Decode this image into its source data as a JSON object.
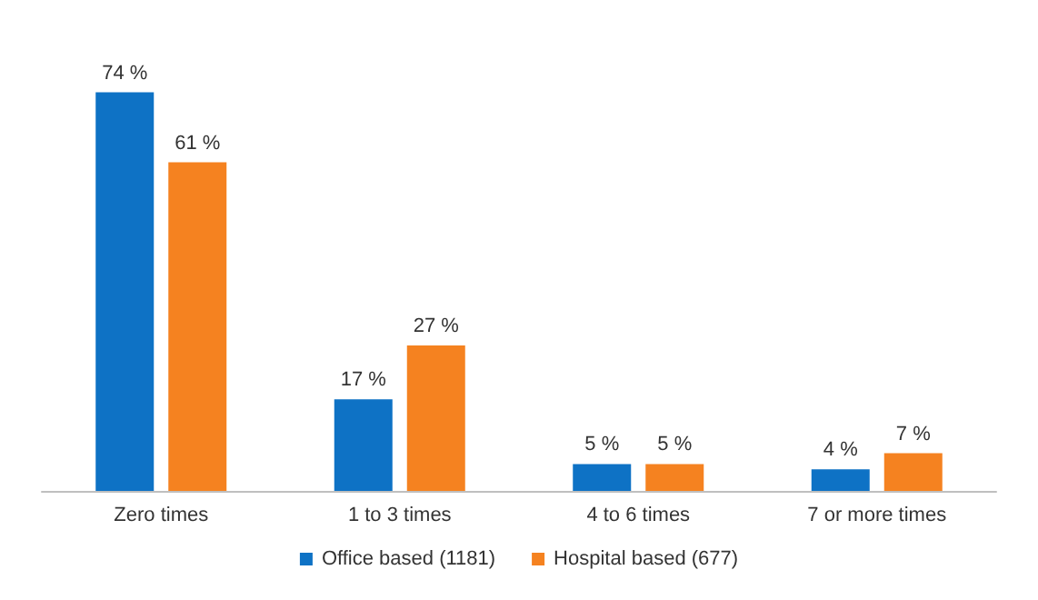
{
  "chart_data": {
    "type": "bar",
    "categories": [
      "Zero times",
      "1 to 3 times",
      "4 to 6 times",
      "7 or more times"
    ],
    "series": [
      {
        "name": "Office based (1181)",
        "color": "#0e72c5",
        "values": [
          74,
          17,
          5,
          4
        ],
        "value_labels": [
          "74 %",
          "17 %",
          "5 %",
          "4 %"
        ]
      },
      {
        "name": "Hospital based (677)",
        "color": "#f58220",
        "values": [
          61,
          27,
          5,
          7
        ],
        "value_labels": [
          "61 %",
          "27 %",
          "5 %",
          "7 %"
        ]
      }
    ],
    "grid": false,
    "legend": "bottom",
    "tick_labels": "x"
  }
}
